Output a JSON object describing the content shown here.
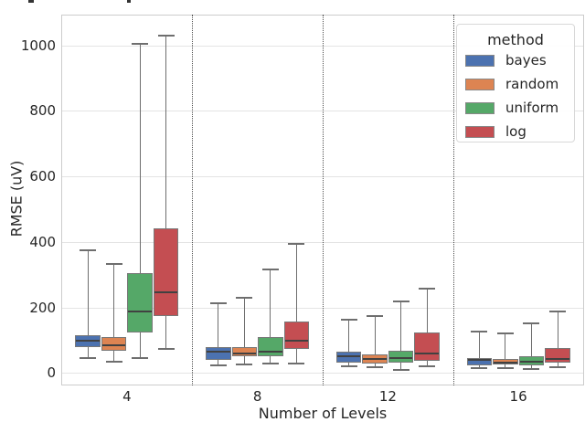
{
  "chart_data": {
    "type": "boxplot",
    "title": "",
    "xlabel": "Number of Levels",
    "ylabel": "RMSE (uV)",
    "categories": [
      "4",
      "8",
      "12",
      "16"
    ],
    "x_tick_labels": [
      "4",
      "8",
      "12",
      "16"
    ],
    "y_ticks": [
      0,
      200,
      400,
      600,
      800,
      1000
    ],
    "y_tick_labels": [
      "0",
      "200",
      "400",
      "600",
      "800",
      "1000"
    ],
    "ylim": [
      -37,
      1095
    ],
    "grid": true,
    "group_separators": "dotted vertical lines between category groups",
    "legend": {
      "title": "method",
      "position": "upper right",
      "entries": [
        "bayes",
        "random",
        "uniform",
        "log"
      ]
    },
    "series": [
      {
        "name": "bayes",
        "color": "#4C72B0",
        "boxes": [
          {
            "whislo": 48,
            "q1": 80,
            "med": 101,
            "q3": 117,
            "whishi": 375
          },
          {
            "whislo": 25,
            "q1": 42,
            "med": 65,
            "q3": 81,
            "whishi": 215
          },
          {
            "whislo": 21,
            "q1": 32,
            "med": 51,
            "q3": 65,
            "whishi": 165
          },
          {
            "whislo": 16,
            "q1": 25,
            "med": 40,
            "q3": 47,
            "whishi": 128
          }
        ]
      },
      {
        "name": "random",
        "color": "#DD8452",
        "boxes": [
          {
            "whislo": 35,
            "q1": 70,
            "med": 85,
            "q3": 110,
            "whishi": 335
          },
          {
            "whislo": 28,
            "q1": 51,
            "med": 62,
            "q3": 79,
            "whishi": 232
          },
          {
            "whislo": 18,
            "q1": 30,
            "med": 45,
            "q3": 58,
            "whishi": 174
          },
          {
            "whislo": 16,
            "q1": 26,
            "med": 34,
            "q3": 44,
            "whishi": 121
          }
        ]
      },
      {
        "name": "uniform",
        "color": "#55A868",
        "boxes": [
          {
            "whislo": 48,
            "q1": 125,
            "med": 188,
            "q3": 305,
            "whishi": 1007
          },
          {
            "whislo": 31,
            "q1": 51,
            "med": 67,
            "q3": 112,
            "whishi": 316
          },
          {
            "whislo": 11,
            "q1": 32,
            "med": 48,
            "q3": 70,
            "whishi": 221
          },
          {
            "whislo": 12,
            "q1": 25,
            "med": 37,
            "q3": 53,
            "whishi": 153
          }
        ]
      },
      {
        "name": "log",
        "color": "#C44E52",
        "boxes": [
          {
            "whislo": 74,
            "q1": 174,
            "med": 248,
            "q3": 442,
            "whishi": 1032
          },
          {
            "whislo": 30,
            "q1": 74,
            "med": 100,
            "q3": 158,
            "whishi": 395
          },
          {
            "whislo": 21,
            "q1": 39,
            "med": 60,
            "q3": 126,
            "whishi": 260
          },
          {
            "whislo": 18,
            "q1": 32,
            "med": 45,
            "q3": 77,
            "whishi": 188
          }
        ]
      }
    ]
  }
}
